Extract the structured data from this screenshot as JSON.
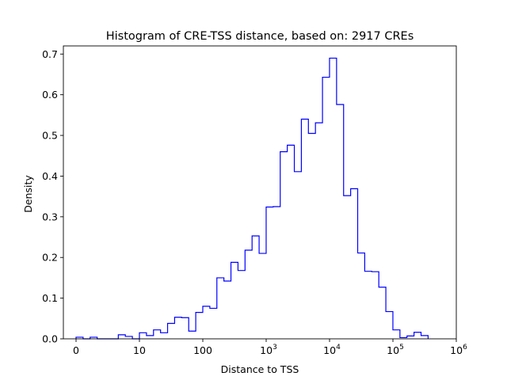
{
  "chart_data": {
    "type": "histogram",
    "title": "Histogram of CRE-TSS distance, based on: 2917 CREs",
    "xlabel": "Distance to TSS",
    "ylabel": "Density",
    "x_scale": "symlog-like",
    "xlim": [
      -0.2,
      6.0
    ],
    "ylim": [
      0,
      0.72
    ],
    "grid": false,
    "line_color": "#0000ff",
    "xticks": [
      {
        "pos": 0,
        "base": "0",
        "exp": ""
      },
      {
        "pos": 1,
        "base": "10",
        "exp": ""
      },
      {
        "pos": 2,
        "base": "100",
        "exp": ""
      },
      {
        "pos": 3,
        "base": "10",
        "exp": "3"
      },
      {
        "pos": 4,
        "base": "10",
        "exp": "4"
      },
      {
        "pos": 5,
        "base": "10",
        "exp": "5"
      },
      {
        "pos": 6,
        "base": "10",
        "exp": "6"
      }
    ],
    "yticks": [
      "0.0",
      "0.1",
      "0.2",
      "0.3",
      "0.4",
      "0.5",
      "0.6",
      "0.7"
    ],
    "bin_start": 0.0,
    "bin_width": 0.1111,
    "densities": [
      0.004,
      0.0,
      0.004,
      0.0,
      0.0,
      0.0,
      0.01,
      0.006,
      0.0,
      0.015,
      0.008,
      0.022,
      0.015,
      0.038,
      0.053,
      0.052,
      0.019,
      0.065,
      0.08,
      0.075,
      0.15,
      0.142,
      0.188,
      0.168,
      0.218,
      0.253,
      0.21,
      0.324,
      0.325,
      0.46,
      0.476,
      0.411,
      0.54,
      0.505,
      0.531,
      0.643,
      0.69,
      0.576,
      0.352,
      0.369,
      0.211,
      0.166,
      0.165,
      0.127,
      0.067,
      0.022,
      0.003,
      0.007,
      0.016,
      0.008
    ]
  }
}
